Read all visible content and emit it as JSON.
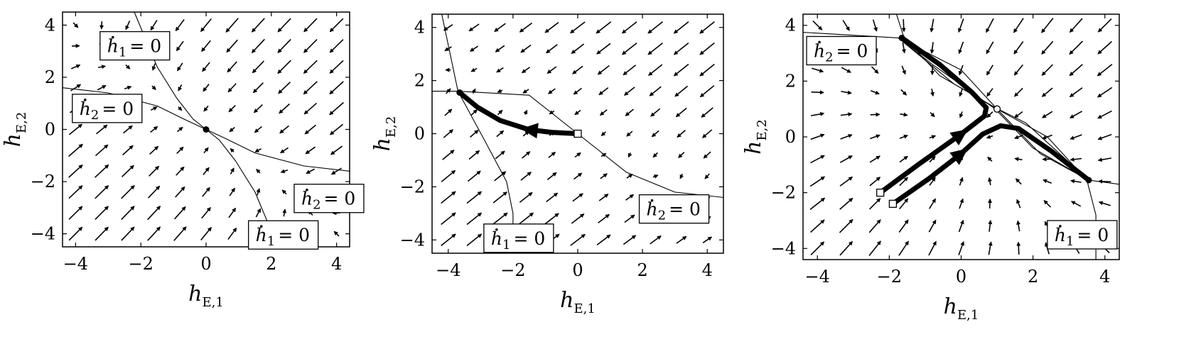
{
  "chart_data": [
    {
      "type": "vector_field",
      "panel": "left",
      "xlabel": "h",
      "xlabel_sub": "E,1",
      "ylabel": "h",
      "ylabel_sub": "E,2",
      "xlim": [
        -4.4,
        4.4
      ],
      "ylim": [
        -4.5,
        4.5
      ],
      "xticks": [
        -4,
        -2,
        0,
        2,
        4
      ],
      "yticks": [
        -4,
        -2,
        0,
        2,
        4
      ],
      "field": {
        "a": 0.55,
        "b": 0.45,
        "c": 0.45,
        "d": 0.55
      },
      "nullclines": [
        {
          "name": "h1",
          "points": [
            [
              -2.2,
              4.5
            ],
            [
              -1.5,
              2.4
            ],
            [
              -0.9,
              1.2
            ],
            [
              -0.4,
              0.4
            ],
            [
              0,
              0
            ],
            [
              0.4,
              -0.4
            ],
            [
              0.9,
              -1.2
            ],
            [
              1.5,
              -2.4
            ],
            [
              2.2,
              -4.5
            ]
          ]
        },
        {
          "name": "h2",
          "points": [
            [
              -4.4,
              1.6
            ],
            [
              -3.0,
              1.4
            ],
            [
              -1.5,
              0.9
            ],
            [
              -0.6,
              0.35
            ],
            [
              0,
              0
            ],
            [
              0.6,
              -0.35
            ],
            [
              1.5,
              -0.9
            ],
            [
              3.0,
              -1.4
            ],
            [
              4.4,
              -1.6
            ]
          ]
        }
      ],
      "fixed_points": [
        {
          "x": 0,
          "y": 0,
          "kind": "filled"
        }
      ],
      "trajectories": [],
      "labels": [
        {
          "var": "h",
          "sub": "1",
          "rhs": "= 0",
          "anchor": [
            -3.25,
            3.75
          ]
        },
        {
          "var": "h",
          "sub": "2",
          "rhs": "= 0",
          "anchor": [
            -4.1,
            1.35
          ]
        },
        {
          "var": "h",
          "sub": "2",
          "rhs": "= 0",
          "anchor": [
            2.7,
            -2.1
          ]
        },
        {
          "var": "h",
          "sub": "1",
          "rhs": "= 0",
          "anchor": [
            1.3,
            -3.5
          ]
        }
      ]
    },
    {
      "type": "vector_field",
      "panel": "middle",
      "xlabel": "h",
      "xlabel_sub": "E,1",
      "ylabel": "h",
      "ylabel_sub": "E,2",
      "xlim": [
        -4.5,
        4.5
      ],
      "ylim": [
        -4.5,
        4.5
      ],
      "xticks": [
        -4,
        -2,
        0,
        2,
        4
      ],
      "yticks": [
        -4,
        -2,
        0,
        2,
        4
      ],
      "field": {
        "a": 0.35,
        "b": 0.65,
        "c": 0.3,
        "d": 0.5
      },
      "nullclines": [
        {
          "name": "h1",
          "points": [
            [
              -4.2,
              4.5
            ],
            [
              -3.7,
              1.6
            ],
            [
              -2.9,
              -0.2
            ],
            [
              -2.2,
              -1.8
            ],
            [
              -2.0,
              -3.0
            ],
            [
              -2.0,
              -4.5
            ]
          ]
        },
        {
          "name": "h2",
          "points": [
            [
              -4.5,
              1.6
            ],
            [
              -3.7,
              1.6
            ],
            [
              -1.5,
              1.45
            ],
            [
              0,
              0
            ],
            [
              1.5,
              -1.45
            ],
            [
              3.0,
              -2.2
            ],
            [
              4.5,
              -2.4
            ]
          ]
        }
      ],
      "fixed_points": [
        {
          "x": -3.65,
          "y": 1.55,
          "kind": "filled"
        },
        {
          "x": 0,
          "y": 0,
          "kind": "open-square"
        }
      ],
      "trajectories": [
        {
          "points": [
            [
              0,
              0
            ],
            [
              -0.8,
              0.05
            ],
            [
              -1.5,
              0.15
            ],
            [
              -2.4,
              0.5
            ],
            [
              -3.1,
              1.0
            ],
            [
              -3.65,
              1.55
            ]
          ],
          "arrow_at": 2
        }
      ],
      "labels": [
        {
          "var": "h",
          "sub": "2",
          "rhs": "= 0",
          "anchor": [
            1.9,
            -2.3
          ]
        },
        {
          "var": "h",
          "sub": "1",
          "rhs": "= 0",
          "anchor": [
            -2.9,
            -3.4
          ]
        }
      ]
    },
    {
      "type": "vector_field",
      "panel": "right",
      "xlabel": "h",
      "xlabel_sub": "E,1",
      "ylabel": "h",
      "ylabel_sub": "E,2",
      "xlim": [
        -4.4,
        4.4
      ],
      "ylim": [
        -4.4,
        4.4
      ],
      "xticks": [
        -4,
        -2,
        0,
        2,
        4
      ],
      "yticks": [
        -4,
        -2,
        0,
        2,
        4
      ],
      "field": {
        "a": 0.55,
        "b": 0.2,
        "c": 0.2,
        "d": 0.55
      },
      "nullclines": [
        {
          "name": "h1",
          "points": [
            [
              -1.8,
              4.4
            ],
            [
              -1.6,
              3.6
            ],
            [
              -0.6,
              2.2
            ],
            [
              1.0,
              1.0
            ],
            [
              2.4,
              0.0
            ],
            [
              3.5,
              -1.55
            ],
            [
              3.75,
              -2.8
            ],
            [
              3.75,
              -4.4
            ]
          ]
        },
        {
          "name": "h2",
          "points": [
            [
              -4.4,
              3.75
            ],
            [
              -1.75,
              3.55
            ],
            [
              0.0,
              2.4
            ],
            [
              1.0,
              1.0
            ],
            [
              2.2,
              -0.6
            ],
            [
              3.55,
              -1.55
            ],
            [
              4.4,
              -1.7
            ]
          ]
        },
        {
          "name": "h1b",
          "points": [
            [
              -1.75,
              3.55
            ],
            [
              -0.2,
              1.9
            ],
            [
              0.95,
              1.05
            ],
            [
              1.8,
              0.5
            ],
            [
              3.55,
              -1.55
            ]
          ]
        },
        {
          "name": "h2b",
          "points": [
            [
              -1.75,
              3.55
            ],
            [
              -0.8,
              2.6
            ],
            [
              0.4,
              1.5
            ],
            [
              0.95,
              1.0
            ],
            [
              2.0,
              -0.4
            ],
            [
              3.55,
              -1.55
            ]
          ]
        }
      ],
      "fixed_points": [
        {
          "x": -1.65,
          "y": 3.55,
          "kind": "filled"
        },
        {
          "x": 3.55,
          "y": -1.55,
          "kind": "filled"
        },
        {
          "x": 1.0,
          "y": 1.0,
          "kind": "open-circle"
        },
        {
          "x": -2.25,
          "y": -2.0,
          "kind": "open-square"
        },
        {
          "x": -1.9,
          "y": -2.4,
          "kind": "open-square"
        }
      ],
      "trajectories": [
        {
          "points": [
            [
              -2.25,
              -2.0
            ],
            [
              -1.2,
              -1.0
            ],
            [
              0.0,
              0.1
            ],
            [
              0.65,
              0.75
            ],
            [
              0.7,
              1.05
            ],
            [
              0.3,
              1.6
            ],
            [
              -0.6,
              2.6
            ],
            [
              -1.65,
              3.55
            ]
          ],
          "arrow_at": 2
        },
        {
          "points": [
            [
              -1.9,
              -2.4
            ],
            [
              -0.9,
              -1.5
            ],
            [
              0.0,
              -0.6
            ],
            [
              0.6,
              0.1
            ],
            [
              1.1,
              0.4
            ],
            [
              1.6,
              0.3
            ],
            [
              2.5,
              -0.5
            ],
            [
              3.55,
              -1.55
            ]
          ],
          "arrow_at": 2
        }
      ],
      "labels": [
        {
          "var": "h",
          "sub": "2",
          "rhs": "= 0",
          "anchor": [
            -4.3,
            3.6
          ]
        },
        {
          "var": "h",
          "sub": "1",
          "rhs": "= 0",
          "anchor": [
            2.4,
            -3.0
          ]
        }
      ]
    }
  ]
}
